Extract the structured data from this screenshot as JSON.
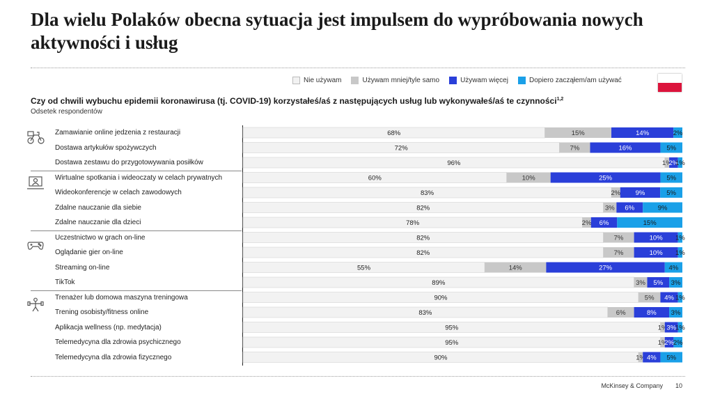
{
  "title": "Dla wielu Polaków obecna sytuacja jest impulsem do wypróbowania nowych aktywności i usług",
  "question": "Czy od chwili wybuchu epidemii koronawirusa (tj. COVID-19) korzystałeś/aś z następujących usług lub wykonywałeś/aś te czynności",
  "question_sup": "1,2",
  "subtitle": "Odsetek respondentów",
  "legend": [
    {
      "label": "Nie używam",
      "color": "#f2f2f2"
    },
    {
      "label": "Używam mniej/tyle samo",
      "color": "#c8c8c8"
    },
    {
      "label": "Używam więcej",
      "color": "#2a3fd9"
    },
    {
      "label": "Dopiero zacząłem/am używać",
      "color": "#1aa0e8"
    }
  ],
  "flag_colors": {
    "top": "#ffffff",
    "bottom": "#dc143c"
  },
  "group_icons": [
    "food-delivery-icon",
    "laptop-person-icon",
    "gamepad-icon",
    "fitness-icon"
  ],
  "footer": {
    "company": "McKinsey & Company",
    "page": "10"
  },
  "chart_data": {
    "type": "bar",
    "orientation": "horizontal",
    "stacked": true,
    "unit": "%",
    "categories": [
      "Zamawianie online jedzenia z restauracji",
      "Dostawa artykułów spożywczych",
      "Dostawa zestawu do przygotowywania posiłków",
      "Wirtualne spotkania i wideoczaty w celach prywatnych",
      "Wideokonferencje w celach zawodowych",
      "Zdalne nauczanie dla siebie",
      "Zdalne nauczanie dla dzieci",
      "Uczestnictwo w grach on-line",
      "Oglądanie gier on-line",
      "Streaming on-line",
      "TikTok",
      "Trenażer lub domowa maszyna treningowa",
      "Trening osobisty/fitness online",
      "Aplikacja wellness (np. medytacja)",
      "Telemedycyna dla zdrowia psychicznego",
      "Telemedycyna dla zdrowia fizycznego"
    ],
    "groups": [
      [
        0,
        2
      ],
      [
        3,
        6
      ],
      [
        7,
        10
      ],
      [
        11,
        15
      ]
    ],
    "series": [
      {
        "name": "Nie używam",
        "values": [
          68,
          72,
          96,
          60,
          83,
          82,
          78,
          82,
          82,
          55,
          89,
          90,
          83,
          95,
          95,
          90
        ]
      },
      {
        "name": "Używam mniej/tyle samo",
        "values": [
          15,
          7,
          1,
          10,
          2,
          3,
          2,
          7,
          7,
          14,
          3,
          5,
          6,
          1,
          1,
          1
        ]
      },
      {
        "name": "Używam więcej",
        "values": [
          14,
          16,
          2,
          25,
          9,
          6,
          6,
          10,
          10,
          27,
          5,
          4,
          8,
          3,
          2,
          4
        ]
      },
      {
        "name": "Dopiero zacząłem/am używać",
        "values": [
          2,
          5,
          1,
          5,
          5,
          9,
          15,
          1,
          1,
          4,
          3,
          1,
          3,
          1,
          2,
          5
        ]
      }
    ]
  }
}
